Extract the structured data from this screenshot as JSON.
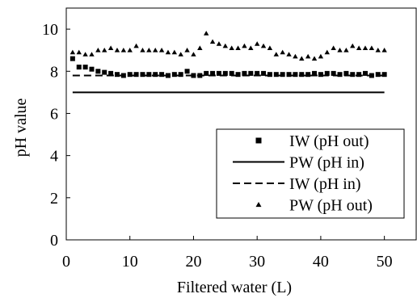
{
  "chart_data": {
    "type": "scatter",
    "title": "",
    "xlabel": "Filtered water (L)",
    "ylabel": "pH value",
    "xlim": [
      0,
      55
    ],
    "ylim": [
      0,
      11
    ],
    "xticks": [
      0,
      10,
      20,
      30,
      40,
      50
    ],
    "yticks": [
      0,
      2,
      4,
      6,
      8,
      10
    ],
    "grid": false,
    "legend_position": "bottom-right",
    "series": [
      {
        "name": "IW (pH out)",
        "style": "square-markers",
        "x": [
          1,
          2,
          3,
          4,
          5,
          6,
          7,
          8,
          9,
          10,
          11,
          12,
          13,
          14,
          15,
          16,
          17,
          18,
          19,
          20,
          21,
          22,
          23,
          24,
          25,
          26,
          27,
          28,
          29,
          30,
          31,
          32,
          33,
          34,
          35,
          36,
          37,
          38,
          39,
          40,
          41,
          42,
          43,
          44,
          45,
          46,
          47,
          48,
          49,
          50
        ],
        "y": [
          8.6,
          8.2,
          8.2,
          8.1,
          8.0,
          7.95,
          7.9,
          7.85,
          7.8,
          7.85,
          7.85,
          7.85,
          7.85,
          7.85,
          7.85,
          7.8,
          7.85,
          7.85,
          8.0,
          7.8,
          7.8,
          7.9,
          7.9,
          7.9,
          7.9,
          7.9,
          7.85,
          7.9,
          7.9,
          7.9,
          7.9,
          7.85,
          7.85,
          7.85,
          7.85,
          7.85,
          7.85,
          7.85,
          7.9,
          7.85,
          7.9,
          7.9,
          7.85,
          7.9,
          7.85,
          7.85,
          7.9,
          7.8,
          7.85,
          7.85
        ]
      },
      {
        "name": "PW (pH in)",
        "style": "solid-line",
        "x": [
          1,
          50
        ],
        "y": [
          7.0,
          7.0
        ]
      },
      {
        "name": "IW (pH in)",
        "style": "dashed-line",
        "x": [
          1,
          50
        ],
        "y": [
          7.8,
          7.8
        ]
      },
      {
        "name": "PW (pH out)",
        "style": "triangle-markers",
        "x": [
          1,
          2,
          3,
          4,
          5,
          6,
          7,
          8,
          9,
          10,
          11,
          12,
          13,
          14,
          15,
          16,
          17,
          18,
          19,
          20,
          21,
          22,
          23,
          24,
          25,
          26,
          27,
          28,
          29,
          30,
          31,
          32,
          33,
          34,
          35,
          36,
          37,
          38,
          39,
          40,
          41,
          42,
          43,
          44,
          45,
          46,
          47,
          48,
          49,
          50
        ],
        "y": [
          8.9,
          8.9,
          8.8,
          8.8,
          9.0,
          9.0,
          9.1,
          9.0,
          9.0,
          9.0,
          9.2,
          9.0,
          9.0,
          9.0,
          9.0,
          8.9,
          8.9,
          8.8,
          9.0,
          8.8,
          9.1,
          9.8,
          9.4,
          9.3,
          9.2,
          9.1,
          9.1,
          9.2,
          9.1,
          9.3,
          9.2,
          9.1,
          8.8,
          8.9,
          8.8,
          8.7,
          8.6,
          8.7,
          8.6,
          8.7,
          8.9,
          9.1,
          9.0,
          9.0,
          9.2,
          9.1,
          9.1,
          9.1,
          9.0,
          9.0
        ]
      }
    ]
  }
}
